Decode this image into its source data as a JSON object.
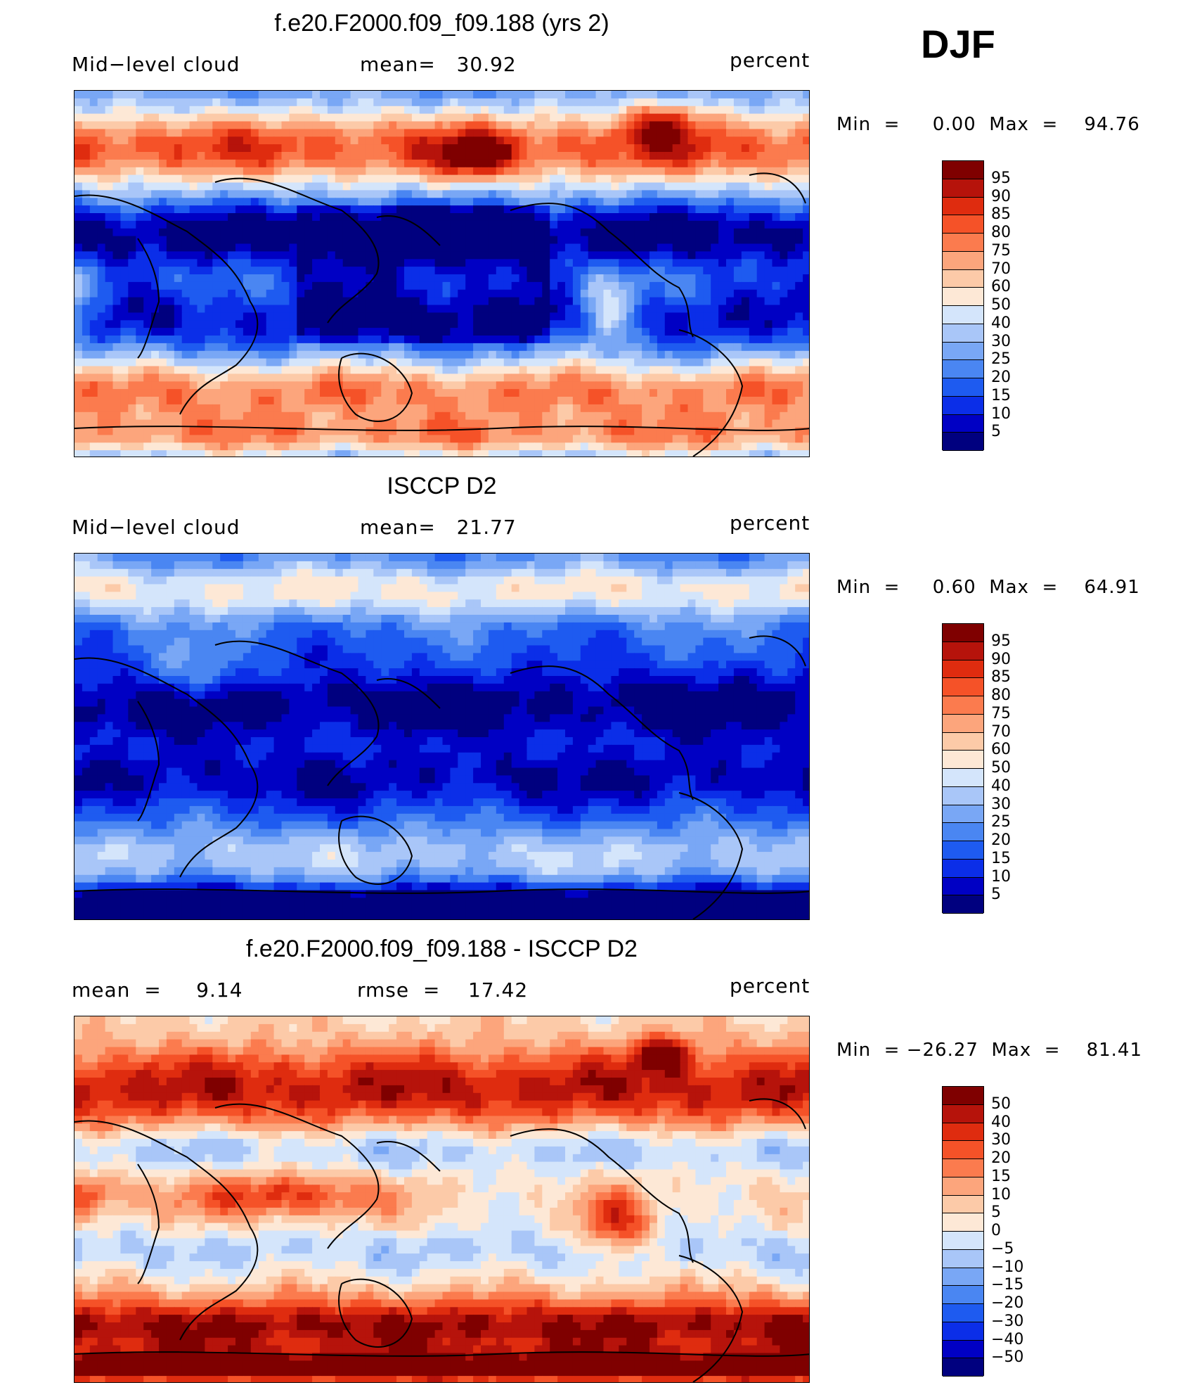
{
  "season": "DJF",
  "colors": {
    "seq": [
      "#00007f",
      "#0000c4",
      "#0b2ee8",
      "#1e5bf0",
      "#4a86f2",
      "#79a7f5",
      "#a9c6f8",
      "#d4e5fb",
      "#fde8d6",
      "#fccaa8",
      "#fca57c",
      "#fb7b4e",
      "#f55228",
      "#df2c0f",
      "#b6130b",
      "#7f0000"
    ],
    "diff": [
      "#00007f",
      "#0000c4",
      "#0b2ee8",
      "#1e5bf0",
      "#4a86f2",
      "#79a7f5",
      "#a9c6f8",
      "#d4e5fb",
      "#fde8d6",
      "#fccaa8",
      "#fca57c",
      "#fb7b4e",
      "#f55228",
      "#df2c0f",
      "#b6130b",
      "#7f0000"
    ]
  },
  "panels": [
    {
      "title": "f.e20.F2000.f09_f09.188 (yrs 2)",
      "left_label": "Mid−level cloud",
      "mid_label": "mean=   30.92",
      "right_label": "percent",
      "minmax": "Min  =     0.00  Max  =    94.76",
      "cbar_levels": [
        "95",
        "90",
        "85",
        "80",
        "75",
        "70",
        "60",
        "50",
        "40",
        "30",
        "25",
        "20",
        "15",
        "10",
        "5"
      ],
      "field": "model"
    },
    {
      "title": "ISCCP D2",
      "left_label": "Mid−level cloud",
      "mid_label": "mean=   21.77",
      "right_label": "percent",
      "minmax": "Min  =     0.60  Max  =    64.91",
      "cbar_levels": [
        "95",
        "90",
        "85",
        "80",
        "75",
        "70",
        "60",
        "50",
        "40",
        "30",
        "25",
        "20",
        "15",
        "10",
        "5"
      ],
      "field": "obs"
    },
    {
      "title": "f.e20.F2000.f09_f09.188 - ISCCP D2",
      "left_label": "mean  =     9.14",
      "mid_label": "rmse  =    17.42",
      "right_label": "percent",
      "minmax": "Min  = −26.27  Max  =    81.41",
      "cbar_levels": [
        "50",
        "40",
        "30",
        "20",
        "15",
        "10",
        "5",
        "0",
        "−5",
        "−10",
        "−15",
        "−20",
        "−30",
        "−40",
        "−50"
      ],
      "field": "diff"
    }
  ]
}
